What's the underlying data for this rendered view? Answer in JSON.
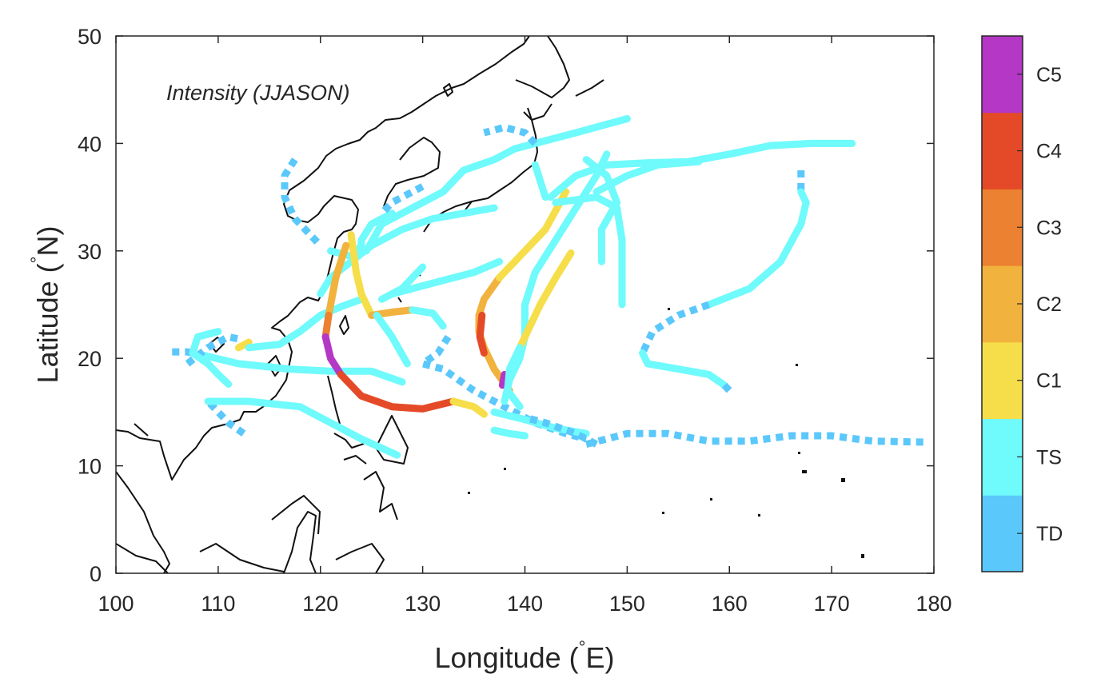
{
  "chart_data": {
    "type": "map",
    "annotation": "Intensity (JJASON)",
    "xlabel_text": "Longitude (",
    "xlabel_unit": "E)",
    "ylabel_text": "Latitude (",
    "ylabel_unit": "N)",
    "degree_symbol": "°",
    "xlim": [
      100,
      180
    ],
    "ylim": [
      0,
      50
    ],
    "x_ticks": [
      "100",
      "110",
      "120",
      "130",
      "140",
      "150",
      "160",
      "170",
      "180"
    ],
    "y_ticks": [
      "0",
      "10",
      "20",
      "30",
      "40",
      "50"
    ],
    "colorbar": {
      "categories": [
        {
          "label": "TD",
          "color": "#5bc8fb"
        },
        {
          "label": "TS",
          "color": "#6ffafc"
        },
        {
          "label": "C1",
          "color": "#f6de4a"
        },
        {
          "label": "C2",
          "color": "#f2b23e"
        },
        {
          "label": "C3",
          "color": "#ec8132"
        },
        {
          "label": "C4",
          "color": "#e54a28"
        },
        {
          "label": "C5",
          "color": "#b437c5"
        }
      ]
    },
    "tracks": [
      {
        "points": [
          [
            112.5,
            13
          ],
          [
            111,
            14
          ],
          [
            110,
            15
          ],
          [
            109,
            16
          ]
        ],
        "category": "TD"
      },
      {
        "points": [
          [
            109,
            16
          ],
          [
            113,
            16
          ],
          [
            118,
            15.5
          ],
          [
            121,
            14
          ],
          [
            124,
            12.5
          ],
          [
            127.5,
            11
          ]
        ],
        "category": "TS"
      },
      {
        "points": [
          [
            105.5,
            20.6
          ],
          [
            107,
            20.6
          ],
          [
            108.5,
            20.3
          ]
        ],
        "category": "TD"
      },
      {
        "points": [
          [
            108.5,
            20.3
          ],
          [
            112,
            19.5
          ],
          [
            117,
            19
          ],
          [
            121,
            18.8
          ],
          [
            125,
            18.8
          ],
          [
            128,
            17.8
          ]
        ],
        "category": "TS"
      },
      {
        "points": [
          [
            107,
            19.5
          ],
          [
            109,
            21
          ],
          [
            111,
            22
          ],
          [
            112,
            21.8
          ]
        ],
        "category": "TD"
      },
      {
        "points": [
          [
            111,
            17.6
          ],
          [
            110,
            18.5
          ],
          [
            109,
            19.5
          ],
          [
            107.5,
            20.5
          ],
          [
            108,
            22
          ],
          [
            110,
            22.5
          ]
        ],
        "category": "TS"
      },
      {
        "points": [
          [
            112,
            21
          ],
          [
            113,
            21.5
          ]
        ],
        "category": "C1"
      },
      {
        "points": [
          [
            113,
            21
          ],
          [
            116,
            21.3
          ],
          [
            118,
            22.5
          ],
          [
            120,
            24
          ],
          [
            122,
            24.8
          ],
          [
            124,
            25.5
          ]
        ],
        "category": "TS"
      },
      {
        "points": [
          [
            120,
            26
          ],
          [
            121,
            27.5
          ],
          [
            123,
            29
          ],
          [
            125,
            30.5
          ],
          [
            128,
            32
          ],
          [
            131,
            33
          ],
          [
            134,
            33.5
          ],
          [
            137,
            34
          ]
        ],
        "category": "TS"
      },
      {
        "points": [
          [
            127,
            26
          ],
          [
            131,
            27
          ],
          [
            135,
            28
          ],
          [
            137.5,
            29
          ]
        ],
        "category": "TS"
      },
      {
        "points": [
          [
            126,
            25.5
          ],
          [
            128,
            26.5
          ],
          [
            129,
            27.5
          ],
          [
            130,
            28.5
          ]
        ],
        "category": "TS"
      },
      {
        "points": [
          [
            127,
            33.5
          ],
          [
            125,
            32.5
          ],
          [
            124,
            31
          ],
          [
            124,
            30
          ]
        ],
        "category": "TS"
      },
      {
        "points": [
          [
            124.5,
            30
          ],
          [
            126,
            32.5
          ],
          [
            129,
            34
          ],
          [
            132,
            35.5
          ],
          [
            134,
            37.5
          ],
          [
            137,
            38.5
          ],
          [
            139,
            39.5
          ],
          [
            141,
            40
          ]
        ],
        "category": "TS"
      },
      {
        "points": [
          [
            141,
            40
          ],
          [
            145,
            41
          ],
          [
            150,
            42.3
          ]
        ],
        "category": "TS"
      },
      {
        "points": [
          [
            141,
            40
          ],
          [
            140,
            41
          ],
          [
            138,
            41.5
          ],
          [
            136,
            41
          ]
        ],
        "category": "TD"
      },
      {
        "points": [
          [
            130,
            36
          ],
          [
            127,
            34.5
          ],
          [
            126,
            33.5
          ]
        ],
        "category": "TD"
      },
      {
        "points": [
          [
            117.5,
            38.5
          ],
          [
            116.5,
            37
          ],
          [
            116.5,
            35
          ],
          [
            117.5,
            33
          ],
          [
            119,
            31.5
          ],
          [
            120,
            30.5
          ]
        ],
        "category": "TD"
      },
      {
        "points": [
          [
            121,
            30
          ],
          [
            123,
            29.5
          ],
          [
            124,
            30.5
          ]
        ],
        "category": "TS"
      },
      {
        "points": [
          [
            123,
            31.5
          ],
          [
            123.5,
            28
          ],
          [
            124,
            26
          ],
          [
            125,
            24
          ]
        ],
        "category": "C1"
      },
      {
        "points": [
          [
            125,
            24
          ],
          [
            127,
            24.3
          ],
          [
            129,
            24.5
          ]
        ],
        "category": "C2"
      },
      {
        "points": [
          [
            129,
            24.5
          ],
          [
            131,
            24.2
          ],
          [
            132,
            23
          ]
        ],
        "category": "TS"
      },
      {
        "points": [
          [
            125.5,
            24
          ],
          [
            127,
            22
          ],
          [
            128.5,
            19.5
          ]
        ],
        "category": "TS"
      },
      {
        "points": [
          [
            122.5,
            30.5
          ],
          [
            121.5,
            27.5
          ],
          [
            121,
            25
          ],
          [
            120.8,
            24
          ]
        ],
        "category": "C2"
      },
      {
        "points": [
          [
            120.8,
            24
          ],
          [
            120.5,
            22
          ]
        ],
        "category": "C3"
      },
      {
        "points": [
          [
            120.5,
            22
          ],
          [
            121,
            20
          ],
          [
            122,
            18.5
          ]
        ],
        "category": "C5"
      },
      {
        "points": [
          [
            122,
            18.5
          ],
          [
            124,
            16.5
          ],
          [
            127,
            15.5
          ],
          [
            130,
            15.3
          ],
          [
            133,
            16
          ]
        ],
        "category": "C4"
      },
      {
        "points": [
          [
            133,
            16
          ],
          [
            135,
            15.5
          ],
          [
            136,
            14.8
          ]
        ],
        "category": "C1"
      },
      {
        "points": [
          [
            132.5,
            22
          ],
          [
            131.5,
            20.5
          ],
          [
            130,
            19.5
          ],
          [
            132,
            19
          ],
          [
            135,
            17
          ],
          [
            138,
            15.5
          ],
          [
            141,
            14
          ],
          [
            144,
            13
          ],
          [
            146,
            12.5
          ]
        ],
        "category": "TD"
      },
      {
        "points": [
          [
            137,
            13.3
          ],
          [
            138.5,
            13
          ],
          [
            140,
            12.8
          ]
        ],
        "category": "TS"
      },
      {
        "points": [
          [
            137,
            15
          ],
          [
            140,
            14.3
          ],
          [
            143,
            13.5
          ],
          [
            146,
            13
          ]
        ],
        "category": "TS"
      },
      {
        "points": [
          [
            138.5,
            17
          ],
          [
            137,
            19
          ],
          [
            136,
            21
          ],
          [
            135.5,
            22.5
          ],
          [
            135.5,
            24
          ],
          [
            136,
            25.5
          ],
          [
            137.5,
            27.5
          ]
        ],
        "category": "C2"
      },
      {
        "points": [
          [
            136,
            20.5
          ],
          [
            135.6,
            22
          ],
          [
            135.8,
            24
          ]
        ],
        "category": "C4"
      },
      {
        "points": [
          [
            138,
            18.5
          ],
          [
            137.8,
            17.5
          ]
        ],
        "category": "C5"
      },
      {
        "points": [
          [
            137.5,
            27.5
          ],
          [
            140,
            30
          ],
          [
            142,
            32
          ],
          [
            144,
            35.5
          ]
        ],
        "category": "C1"
      },
      {
        "points": [
          [
            138,
            16
          ],
          [
            138.5,
            18
          ],
          [
            139.5,
            20
          ],
          [
            140,
            22
          ],
          [
            140,
            25
          ],
          [
            141,
            28
          ],
          [
            143,
            31
          ],
          [
            145,
            34
          ],
          [
            147,
            37
          ],
          [
            148,
            39
          ]
        ],
        "category": "TS"
      },
      {
        "points": [
          [
            139.5,
            21
          ],
          [
            140.5,
            23
          ],
          [
            141.5,
            25
          ],
          [
            143,
            27.5
          ],
          [
            144.5,
            29.8
          ]
        ],
        "category": "C1"
      },
      {
        "points": [
          [
            139.5,
            21
          ],
          [
            138.5,
            19
          ],
          [
            138.3,
            17
          ],
          [
            139.5,
            15.5
          ]
        ],
        "category": "TS"
      },
      {
        "points": [
          [
            142,
            35
          ],
          [
            141.5,
            36.5
          ],
          [
            141,
            38
          ]
        ],
        "category": "TS"
      },
      {
        "points": [
          [
            142.5,
            35
          ],
          [
            145,
            37
          ],
          [
            148,
            38
          ],
          [
            152,
            38.2
          ],
          [
            156,
            38.3
          ],
          [
            160,
            39
          ],
          [
            164,
            39.8
          ],
          [
            168,
            40
          ],
          [
            172,
            40
          ]
        ],
        "category": "TS"
      },
      {
        "points": [
          [
            143,
            34.5
          ],
          [
            147,
            35
          ],
          [
            149,
            34
          ],
          [
            149.5,
            31
          ],
          [
            149.5,
            28
          ],
          [
            149.5,
            25
          ]
        ],
        "category": "TS"
      },
      {
        "points": [
          [
            146,
            38.5
          ],
          [
            148,
            37
          ],
          [
            149,
            34.5
          ],
          [
            147.5,
            32
          ],
          [
            147.5,
            29
          ]
        ],
        "category": "TS"
      },
      {
        "points": [
          [
            147,
            35.5
          ],
          [
            150,
            37
          ],
          [
            153,
            38
          ],
          [
            157,
            38.3
          ]
        ],
        "category": "TS"
      },
      {
        "points": [
          [
            146,
            12
          ],
          [
            148,
            12.5
          ],
          [
            150,
            13
          ],
          [
            154,
            13
          ],
          [
            158,
            12.3
          ],
          [
            162,
            12.3
          ],
          [
            166,
            12.8
          ],
          [
            170,
            12.8
          ],
          [
            174,
            12.3
          ],
          [
            179,
            12.2
          ]
        ],
        "category": "TD"
      },
      {
        "points": [
          [
            147,
            12
          ],
          [
            145,
            13
          ],
          [
            142,
            14
          ],
          [
            140,
            14.5
          ]
        ],
        "category": "TD"
      },
      {
        "points": [
          [
            167,
            37.5
          ],
          [
            167,
            35.5
          ]
        ],
        "category": "TD"
      },
      {
        "points": [
          [
            167,
            35.5
          ],
          [
            167.5,
            34.5
          ],
          [
            167,
            32.5
          ],
          [
            165,
            29
          ],
          [
            162,
            26.5
          ],
          [
            158,
            25
          ]
        ],
        "category": "TS"
      },
      {
        "points": [
          [
            158,
            25
          ],
          [
            155,
            24
          ],
          [
            152.5,
            22.5
          ],
          [
            151.5,
            20.5
          ]
        ],
        "category": "TD"
      },
      {
        "points": [
          [
            151.5,
            20.5
          ],
          [
            152,
            19.5
          ],
          [
            155,
            19
          ],
          [
            158,
            18.5
          ],
          [
            159.5,
            17.5
          ]
        ],
        "category": "TS"
      },
      {
        "points": [
          [
            159.5,
            17.5
          ],
          [
            160,
            17
          ]
        ],
        "category": "TD"
      }
    ]
  }
}
